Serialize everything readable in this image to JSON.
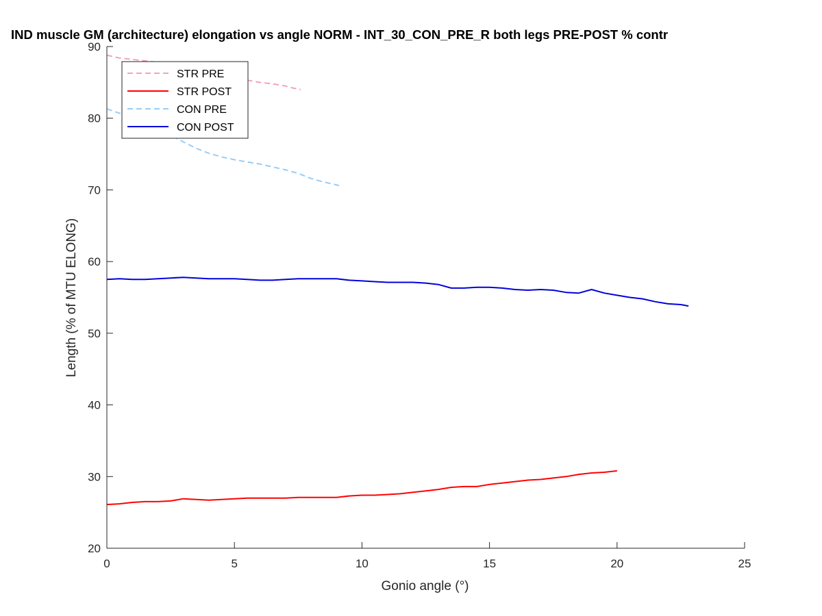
{
  "chart_data": {
    "type": "line",
    "title": "IND muscle GM (architecture) elongation vs angle NORM - INT_30_CON_PRE_R both legs PRE-POST % contr",
    "xlabel": "Gonio angle (°)",
    "ylabel": "Length (% of MTU ELONG)",
    "xlim": [
      0,
      25
    ],
    "ylim": [
      20,
      90
    ],
    "xticks": [
      0,
      5,
      10,
      15,
      20,
      25
    ],
    "yticks": [
      20,
      30,
      40,
      50,
      60,
      70,
      80,
      90
    ],
    "grid": false,
    "legend_position": "top-left",
    "series": [
      {
        "name": "STR PRE",
        "color": "#f5a0c0",
        "dash": true,
        "x": [
          0,
          0.5,
          1,
          1.5,
          2,
          2.5,
          3,
          3.5,
          4,
          4.5,
          5,
          5.5,
          6,
          6.5,
          7,
          7.3,
          7.6
        ],
        "y": [
          88.8,
          88.4,
          88.2,
          88.0,
          87.8,
          87.4,
          87.0,
          86.6,
          86.2,
          85.8,
          85.5,
          85.3,
          85.0,
          84.8,
          84.5,
          84.2,
          84.0
        ]
      },
      {
        "name": "STR POST",
        "color": "#ff0000",
        "dash": false,
        "x": [
          0,
          0.5,
          1,
          1.5,
          2,
          2.5,
          3,
          3.5,
          4,
          4.5,
          5,
          5.5,
          6,
          6.5,
          7,
          7.5,
          8,
          8.5,
          9,
          9.5,
          10,
          10.5,
          11,
          11.5,
          12,
          12.5,
          13,
          13.5,
          14,
          14.5,
          15,
          15.5,
          16,
          16.5,
          17,
          17.5,
          18,
          18.5,
          19,
          19.5,
          20
        ],
        "y": [
          26.1,
          26.2,
          26.4,
          26.5,
          26.5,
          26.6,
          26.9,
          26.8,
          26.7,
          26.8,
          26.9,
          27.0,
          27.0,
          27.0,
          27.0,
          27.1,
          27.1,
          27.1,
          27.1,
          27.3,
          27.4,
          27.4,
          27.5,
          27.6,
          27.8,
          28.0,
          28.2,
          28.5,
          28.6,
          28.6,
          28.9,
          29.1,
          29.3,
          29.5,
          29.6,
          29.8,
          30.0,
          30.3,
          30.5,
          30.6,
          30.8
        ]
      },
      {
        "name": "CON PRE",
        "color": "#99ccf5",
        "dash": true,
        "x": [
          0,
          0.5,
          1,
          1.5,
          2,
          2.5,
          3,
          3.5,
          4,
          4.5,
          5,
          5.5,
          6,
          6.5,
          7,
          7.5,
          8,
          8.5,
          9,
          9.1
        ],
        "y": [
          81.3,
          80.7,
          80.0,
          79.2,
          78.3,
          77.6,
          76.7,
          75.8,
          75.1,
          74.6,
          74.2,
          73.9,
          73.6,
          73.2,
          72.8,
          72.3,
          71.6,
          71.1,
          70.7,
          70.6
        ]
      },
      {
        "name": "CON POST",
        "color": "#0000dd",
        "dash": false,
        "x": [
          0,
          0.5,
          1,
          1.5,
          2,
          2.5,
          3,
          3.5,
          4,
          4.5,
          5,
          5.5,
          6,
          6.5,
          7,
          7.5,
          8,
          8.5,
          9,
          9.5,
          10,
          10.5,
          11,
          11.5,
          12,
          12.5,
          13,
          13.5,
          14,
          14.5,
          15,
          15.5,
          16,
          16.5,
          17,
          17.5,
          18,
          18.5,
          19,
          19.5,
          20,
          20.5,
          21,
          21.5,
          22,
          22.5,
          22.8
        ],
        "y": [
          57.5,
          57.6,
          57.5,
          57.5,
          57.6,
          57.7,
          57.8,
          57.7,
          57.6,
          57.6,
          57.6,
          57.5,
          57.4,
          57.4,
          57.5,
          57.6,
          57.6,
          57.6,
          57.6,
          57.4,
          57.3,
          57.2,
          57.1,
          57.1,
          57.1,
          57.0,
          56.8,
          56.3,
          56.3,
          56.4,
          56.4,
          56.3,
          56.1,
          56.0,
          56.1,
          56.0,
          55.7,
          55.6,
          56.1,
          55.6,
          55.3,
          55.0,
          54.8,
          54.4,
          54.1,
          54.0,
          53.8
        ]
      }
    ]
  }
}
